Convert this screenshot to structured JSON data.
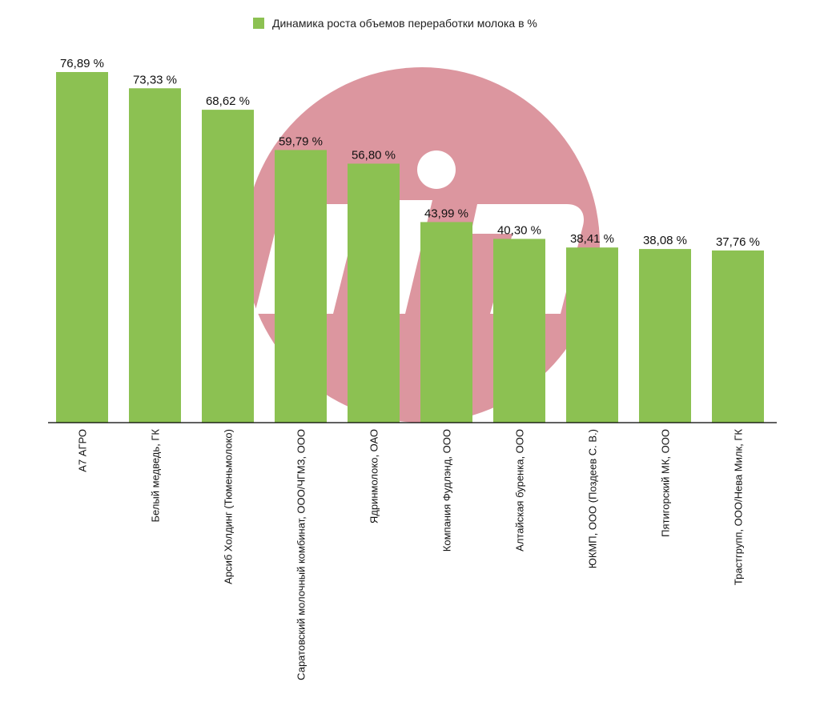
{
  "chart_data": {
    "type": "bar",
    "legend": {
      "label": "Динамика роста объемов переработки молока в %",
      "position": "top"
    },
    "categories": [
      "А7 АГРО",
      "Белый медведь, ГК",
      "Арсиб Холдинг (Тюменьмолоко)",
      "Саратовский молочный комбинат, ООО/ЧГМЗ, ООО",
      "Ядринмолоко, ОАО",
      "Компания Фудлэнд, ООО",
      "Алтайская буренка, ООО",
      "ЮКМП, ООО (Поздеев С. В.)",
      "Пятигорский МК, ООО",
      "Трастгрупп, ООО/Нева Милк, ГК"
    ],
    "values": [
      76.89,
      73.33,
      68.62,
      59.79,
      56.8,
      43.99,
      40.3,
      38.41,
      38.08,
      37.76
    ],
    "data_labels": [
      "76,89 %",
      "73,33 %",
      "68,62 %",
      "59,79 %",
      "56,80 %",
      "43,99 %",
      "40,30 %",
      "38,41 %",
      "38,08 %",
      "37,76 %"
    ],
    "ylim": [
      0,
      80
    ],
    "grid": false,
    "bar_color": "#8cc152",
    "watermark_color": "#dc969f"
  }
}
